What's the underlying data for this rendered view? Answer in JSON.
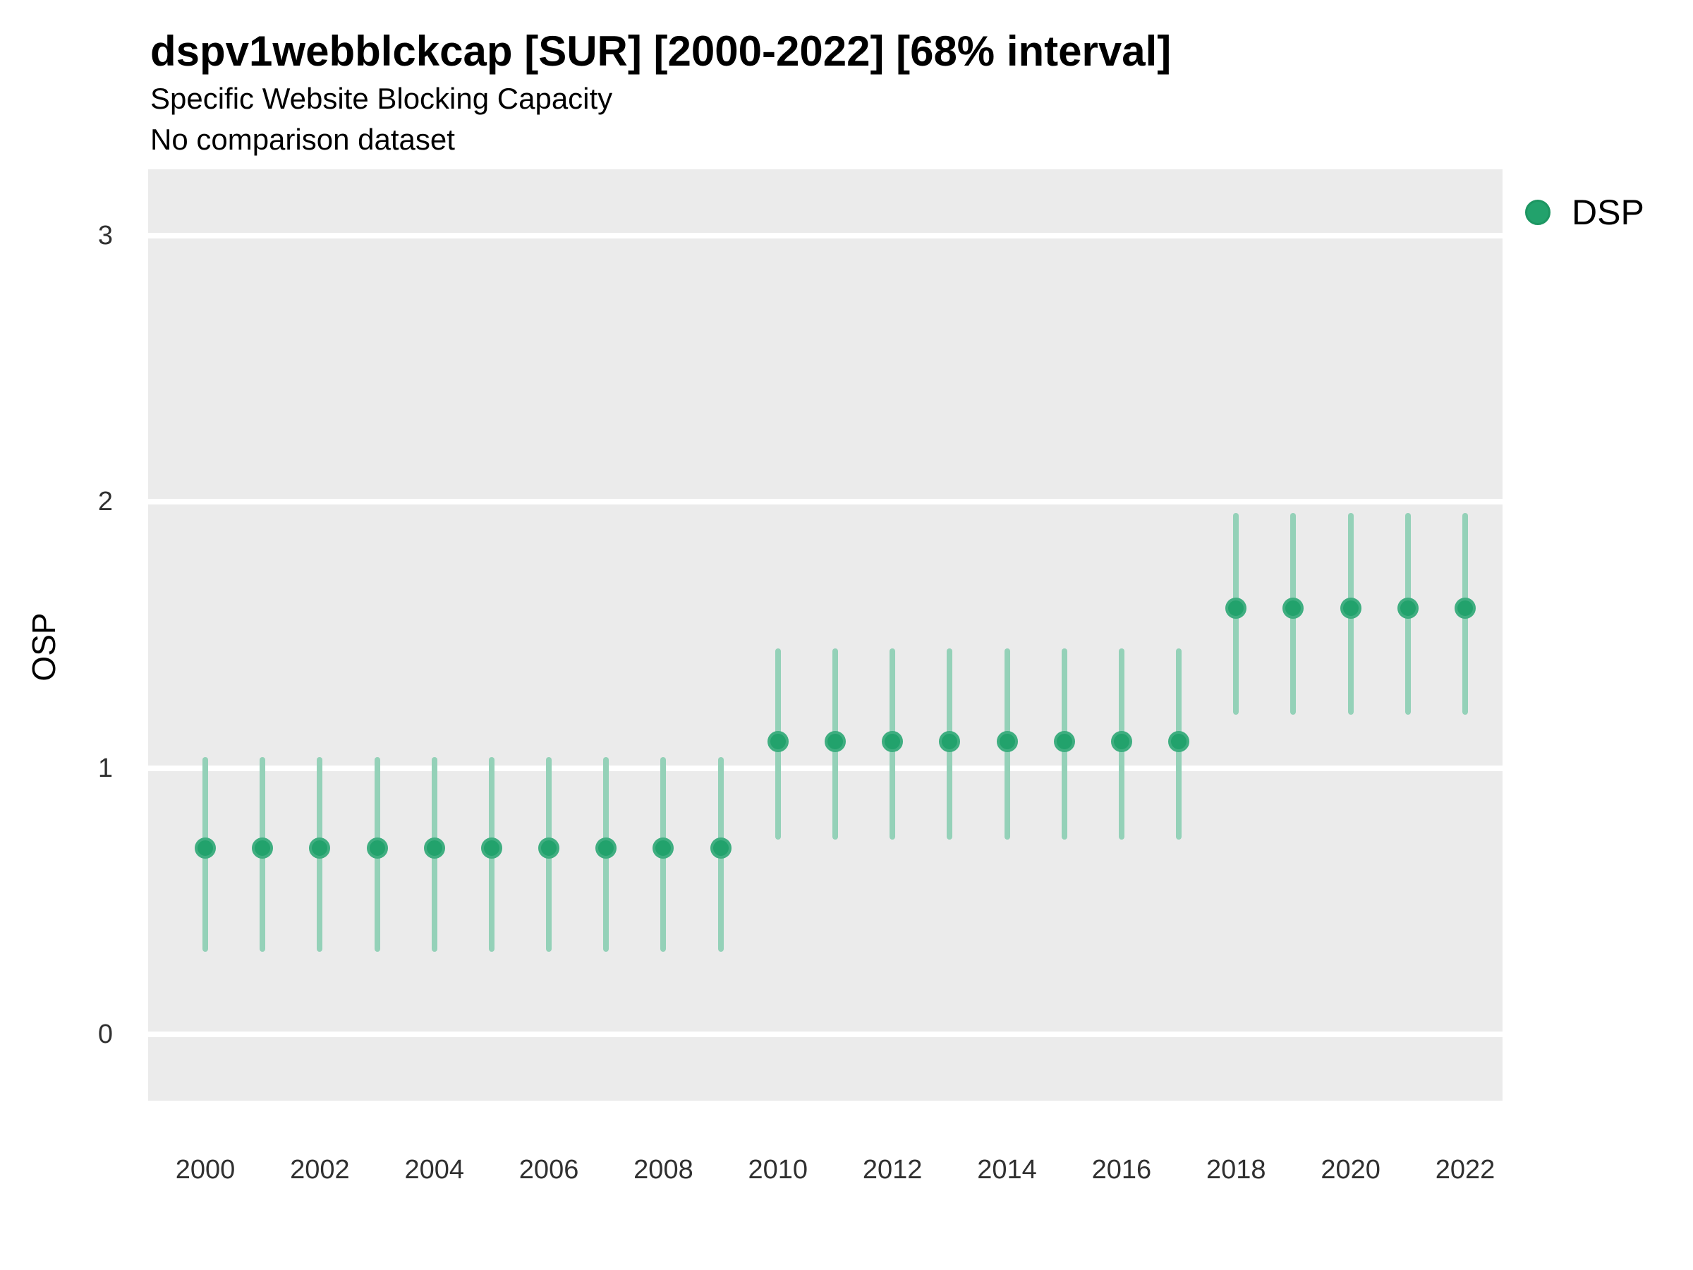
{
  "header": {
    "title": "dspv1webblckcap [SUR] [2000-2022] [68% interval]",
    "subtitle": "Specific Website Blocking Capacity",
    "comparison_note": "No comparison dataset"
  },
  "axes": {
    "y_title": "OSP"
  },
  "legend": {
    "position": "right-top",
    "items": [
      {
        "label": "DSP",
        "color": "#22a26c"
      }
    ]
  },
  "colors": {
    "panel_bg": "#ebebeb",
    "gridline": "#ffffff",
    "point_fill": "#22a26c",
    "point_ring": "#3fae80",
    "interval_line": "#94d1b8",
    "tick_text": "#303030",
    "text": "#000000"
  },
  "chart_data": {
    "type": "pointrange",
    "title": "dspv1webblckcap [SUR] [2000-2022] [68% interval]",
    "subtitle": "Specific Website Blocking Capacity",
    "note": "No comparison dataset",
    "interval_level": "68%",
    "xlabel": "",
    "ylabel": "OSP",
    "x": [
      2000,
      2001,
      2002,
      2003,
      2004,
      2005,
      2006,
      2007,
      2008,
      2009,
      2010,
      2011,
      2012,
      2013,
      2014,
      2015,
      2016,
      2017,
      2018,
      2019,
      2020,
      2021,
      2022
    ],
    "series": [
      {
        "name": "DSP",
        "estimates": [
          0.7,
          0.7,
          0.7,
          0.7,
          0.7,
          0.7,
          0.7,
          0.7,
          0.7,
          0.7,
          1.1,
          1.1,
          1.1,
          1.1,
          1.1,
          1.1,
          1.1,
          1.1,
          1.6,
          1.6,
          1.6,
          1.6,
          1.6
        ],
        "lower": [
          0.31,
          0.31,
          0.31,
          0.31,
          0.31,
          0.31,
          0.31,
          0.31,
          0.31,
          0.31,
          0.73,
          0.73,
          0.73,
          0.73,
          0.73,
          0.73,
          0.73,
          0.73,
          1.2,
          1.2,
          1.2,
          1.2,
          1.2
        ],
        "upper": [
          1.04,
          1.04,
          1.04,
          1.04,
          1.04,
          1.04,
          1.04,
          1.04,
          1.04,
          1.04,
          1.45,
          1.45,
          1.45,
          1.45,
          1.45,
          1.45,
          1.45,
          1.45,
          1.96,
          1.96,
          1.96,
          1.96,
          1.96
        ]
      }
    ],
    "ylim": [
      -0.25,
      3.25
    ],
    "y_breaks": [
      0,
      1,
      2,
      3
    ],
    "x_ticks": [
      2000,
      2002,
      2004,
      2006,
      2008,
      2010,
      2012,
      2014,
      2016,
      2018,
      2020,
      2022
    ],
    "grid": "horizontal-major-only",
    "legend_position": "right-top"
  }
}
